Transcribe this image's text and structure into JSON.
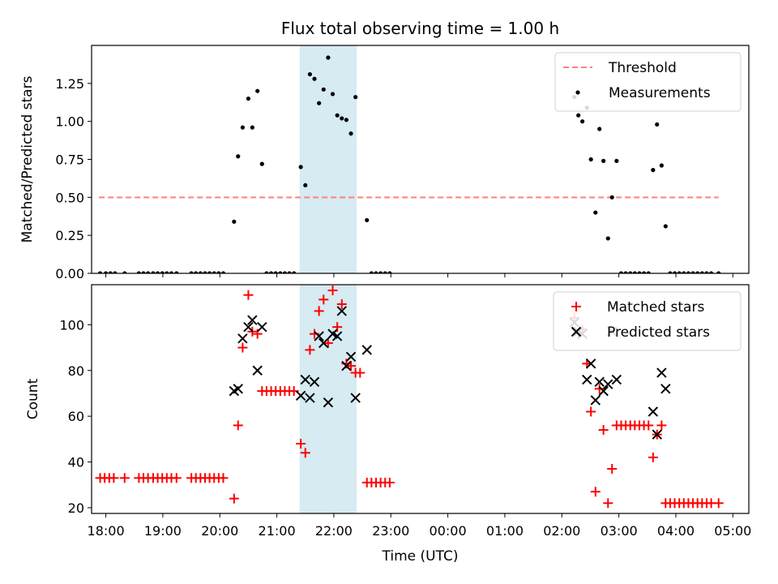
{
  "figure": {
    "title": "Flux total observing time = 1.00 h"
  },
  "chart_data": [
    {
      "type": "scatter",
      "ylabel": "Matched/Predicted stars",
      "xlabel": "",
      "x_unit": "hours since 18:00 UTC",
      "xlim": [
        -0.25,
        11.28
      ],
      "ylim": [
        0.0,
        1.5
      ],
      "y_ticks": [
        0.0,
        0.25,
        0.5,
        0.75,
        1.0,
        1.25
      ],
      "y_tick_labels": [
        "0.00",
        "0.25",
        "0.50",
        "0.75",
        "1.00",
        "1.25"
      ],
      "grid": false,
      "legend": "top-right",
      "shaded_span": {
        "x0": 3.4,
        "x1": 4.4,
        "color": "#add8e6"
      },
      "threshold": {
        "name": "Threshold",
        "y": 0.5,
        "x_range": [
          -0.12,
          10.75
        ],
        "color": "#ff7f7f",
        "style": "dashed"
      },
      "series": [
        {
          "name": "Measurements",
          "color": "#000000",
          "marker": "dot",
          "points": [
            [
              -0.1,
              0
            ],
            [
              0.0,
              0
            ],
            [
              0.08,
              0
            ],
            [
              0.16,
              0
            ],
            [
              0.33,
              0
            ],
            [
              0.58,
              0
            ],
            [
              0.66,
              0
            ],
            [
              0.74,
              0
            ],
            [
              0.83,
              0
            ],
            [
              0.91,
              0
            ],
            [
              0.99,
              0
            ],
            [
              1.07,
              0
            ],
            [
              1.15,
              0
            ],
            [
              1.24,
              0
            ],
            [
              1.5,
              0
            ],
            [
              1.58,
              0
            ],
            [
              1.66,
              0
            ],
            [
              1.74,
              0
            ],
            [
              1.82,
              0
            ],
            [
              1.9,
              0
            ],
            [
              1.98,
              0
            ],
            [
              2.06,
              0
            ],
            [
              2.25,
              0.34
            ],
            [
              2.32,
              0.77
            ],
            [
              2.4,
              0.96
            ],
            [
              2.5,
              1.15
            ],
            [
              2.57,
              0.96
            ],
            [
              2.66,
              1.2
            ],
            [
              2.74,
              0.72
            ],
            [
              2.82,
              0
            ],
            [
              2.9,
              0
            ],
            [
              2.98,
              0
            ],
            [
              3.06,
              0
            ],
            [
              3.14,
              0
            ],
            [
              3.22,
              0
            ],
            [
              3.3,
              0
            ],
            [
              3.42,
              0.7
            ],
            [
              3.5,
              0.58
            ],
            [
              3.58,
              1.31
            ],
            [
              3.66,
              1.28
            ],
            [
              3.74,
              1.12
            ],
            [
              3.82,
              1.21
            ],
            [
              3.9,
              1.42
            ],
            [
              3.98,
              1.18
            ],
            [
              4.06,
              1.04
            ],
            [
              4.14,
              1.02
            ],
            [
              4.22,
              1.01
            ],
            [
              4.3,
              0.92
            ],
            [
              4.38,
              1.16
            ],
            [
              4.58,
              0.35
            ],
            [
              4.66,
              0
            ],
            [
              4.74,
              0
            ],
            [
              4.82,
              0
            ],
            [
              4.9,
              0
            ],
            [
              4.98,
              0
            ],
            [
              8.22,
              1.16
            ],
            [
              8.29,
              1.04
            ],
            [
              8.36,
              1.0
            ],
            [
              8.44,
              1.09
            ],
            [
              8.51,
              0.75
            ],
            [
              8.59,
              0.4
            ],
            [
              8.66,
              0.95
            ],
            [
              8.73,
              0.74
            ],
            [
              8.81,
              0.23
            ],
            [
              8.88,
              0.5
            ],
            [
              8.96,
              0.74
            ],
            [
              9.04,
              0
            ],
            [
              9.12,
              0
            ],
            [
              9.2,
              0
            ],
            [
              9.28,
              0
            ],
            [
              9.36,
              0
            ],
            [
              9.44,
              0
            ],
            [
              9.52,
              0
            ],
            [
              9.6,
              0.68
            ],
            [
              9.67,
              0.98
            ],
            [
              9.75,
              0.71
            ],
            [
              9.82,
              0.31
            ],
            [
              9.9,
              0
            ],
            [
              9.98,
              0
            ],
            [
              10.06,
              0
            ],
            [
              10.14,
              0
            ],
            [
              10.22,
              0
            ],
            [
              10.3,
              0
            ],
            [
              10.38,
              0
            ],
            [
              10.46,
              0
            ],
            [
              10.54,
              0
            ],
            [
              10.62,
              0
            ],
            [
              10.75,
              0
            ]
          ]
        }
      ]
    },
    {
      "type": "scatter",
      "ylabel": "Count",
      "xlabel": "Time (UTC)",
      "x_unit": "hours since 18:00 UTC",
      "xlim": [
        -0.25,
        11.28
      ],
      "ylim": [
        17.5,
        117.5
      ],
      "y_ticks": [
        20,
        40,
        60,
        80,
        100
      ],
      "y_tick_labels": [
        "20",
        "40",
        "60",
        "80",
        "100"
      ],
      "x_ticks": [
        0,
        1,
        2,
        3,
        4,
        5,
        6,
        7,
        8,
        9,
        10,
        11
      ],
      "x_tick_labels": [
        "18:00",
        "19:00",
        "20:00",
        "21:00",
        "22:00",
        "23:00",
        "00:00",
        "01:00",
        "02:00",
        "03:00",
        "04:00",
        "05:00"
      ],
      "grid": false,
      "legend": "top-right",
      "shaded_span": {
        "x0": 3.4,
        "x1": 4.4,
        "color": "#add8e6"
      },
      "series": [
        {
          "name": "Matched stars",
          "color": "#ff0000",
          "marker": "plus",
          "points": [
            [
              -0.1,
              33
            ],
            [
              -0.02,
              33
            ],
            [
              0.06,
              33
            ],
            [
              0.14,
              33
            ],
            [
              0.33,
              33
            ],
            [
              0.58,
              33
            ],
            [
              0.66,
              33
            ],
            [
              0.74,
              33
            ],
            [
              0.83,
              33
            ],
            [
              0.91,
              33
            ],
            [
              0.99,
              33
            ],
            [
              1.07,
              33
            ],
            [
              1.15,
              33
            ],
            [
              1.24,
              33
            ],
            [
              1.5,
              33
            ],
            [
              1.58,
              33
            ],
            [
              1.66,
              33
            ],
            [
              1.74,
              33
            ],
            [
              1.82,
              33
            ],
            [
              1.9,
              33
            ],
            [
              1.98,
              33
            ],
            [
              2.06,
              33
            ],
            [
              2.25,
              24
            ],
            [
              2.32,
              56
            ],
            [
              2.4,
              90
            ],
            [
              2.5,
              113
            ],
            [
              2.57,
              97
            ],
            [
              2.66,
              96
            ],
            [
              2.74,
              71
            ],
            [
              2.82,
              71
            ],
            [
              2.9,
              71
            ],
            [
              2.98,
              71
            ],
            [
              3.06,
              71
            ],
            [
              3.14,
              71
            ],
            [
              3.22,
              71
            ],
            [
              3.3,
              71
            ],
            [
              3.42,
              48
            ],
            [
              3.5,
              44
            ],
            [
              3.58,
              89
            ],
            [
              3.66,
              96
            ],
            [
              3.74,
              106
            ],
            [
              3.82,
              111
            ],
            [
              3.9,
              92
            ],
            [
              3.98,
              115
            ],
            [
              4.06,
              99
            ],
            [
              4.14,
              109
            ],
            [
              4.22,
              83
            ],
            [
              4.3,
              82
            ],
            [
              4.38,
              79
            ],
            [
              4.46,
              79
            ],
            [
              4.58,
              31
            ],
            [
              4.66,
              31
            ],
            [
              4.74,
              31
            ],
            [
              4.82,
              31
            ],
            [
              4.9,
              31
            ],
            [
              4.98,
              31
            ],
            [
              8.22,
              103
            ],
            [
              8.29,
              96
            ],
            [
              8.36,
              98
            ],
            [
              8.44,
              83
            ],
            [
              8.51,
              62
            ],
            [
              8.59,
              27
            ],
            [
              8.66,
              72
            ],
            [
              8.73,
              54
            ],
            [
              8.81,
              22
            ],
            [
              8.88,
              37
            ],
            [
              8.96,
              56
            ],
            [
              9.04,
              56
            ],
            [
              9.12,
              56
            ],
            [
              9.2,
              56
            ],
            [
              9.28,
              56
            ],
            [
              9.36,
              56
            ],
            [
              9.44,
              56
            ],
            [
              9.52,
              56
            ],
            [
              9.6,
              42
            ],
            [
              9.67,
              52
            ],
            [
              9.75,
              56
            ],
            [
              9.82,
              22
            ],
            [
              9.9,
              22
            ],
            [
              9.98,
              22
            ],
            [
              10.06,
              22
            ],
            [
              10.14,
              22
            ],
            [
              10.22,
              22
            ],
            [
              10.3,
              22
            ],
            [
              10.38,
              22
            ],
            [
              10.46,
              22
            ],
            [
              10.54,
              22
            ],
            [
              10.62,
              22
            ],
            [
              10.75,
              22
            ]
          ]
        },
        {
          "name": "Predicted stars",
          "color": "#000000",
          "marker": "x",
          "points": [
            [
              2.25,
              71
            ],
            [
              2.32,
              72
            ],
            [
              2.4,
              94
            ],
            [
              2.5,
              99
            ],
            [
              2.57,
              102
            ],
            [
              2.66,
              80
            ],
            [
              2.74,
              99
            ],
            [
              3.42,
              69
            ],
            [
              3.5,
              76
            ],
            [
              3.58,
              68
            ],
            [
              3.66,
              75
            ],
            [
              3.74,
              95
            ],
            [
              3.82,
              92
            ],
            [
              3.9,
              66
            ],
            [
              3.98,
              96
            ],
            [
              4.06,
              95
            ],
            [
              4.14,
              106
            ],
            [
              4.22,
              82
            ],
            [
              4.3,
              86
            ],
            [
              4.38,
              68
            ],
            [
              4.58,
              89
            ],
            [
              8.22,
              101
            ],
            [
              8.29,
              97
            ],
            [
              8.36,
              96
            ],
            [
              8.44,
              76
            ],
            [
              8.51,
              83
            ],
            [
              8.59,
              67
            ],
            [
              8.66,
              75
            ],
            [
              8.73,
              71
            ],
            [
              8.81,
              74
            ],
            [
              8.88,
              97
            ],
            [
              8.96,
              76
            ],
            [
              9.6,
              62
            ],
            [
              9.67,
              52
            ],
            [
              9.75,
              79
            ],
            [
              9.82,
              72
            ]
          ]
        }
      ]
    }
  ]
}
